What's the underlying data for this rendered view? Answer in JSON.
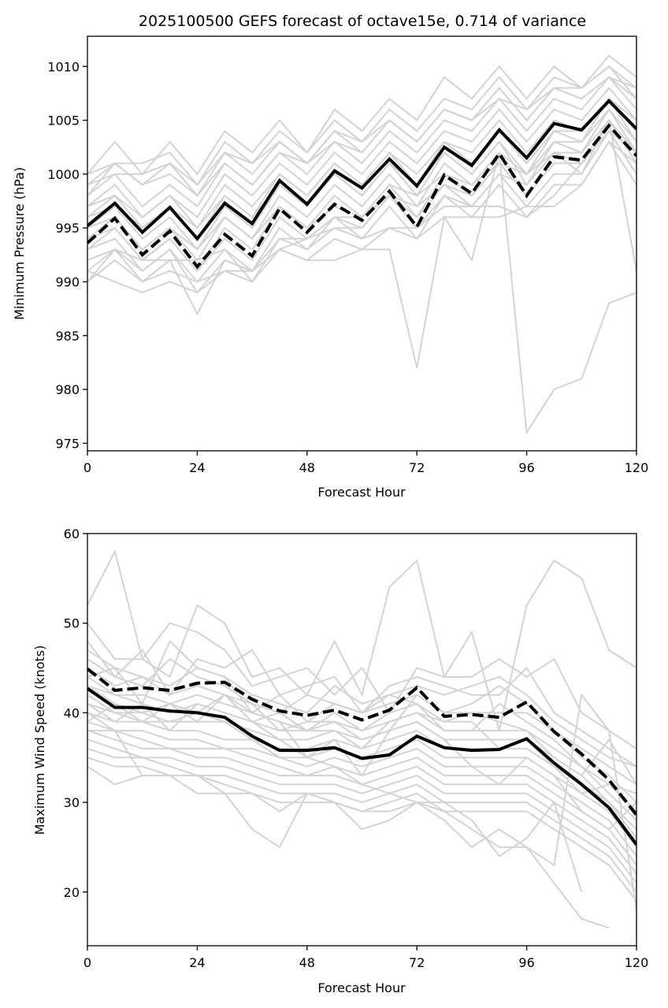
{
  "chart_data": [
    {
      "type": "line",
      "title": "2025100500 GEFS forecast of octave15e, 0.714 of variance",
      "xlabel": "Forecast Hour",
      "ylabel": "Minimum Pressure (hPa)",
      "xlim": [
        0,
        120
      ],
      "ylim": [
        974.3,
        1012.8
      ],
      "xticks": [
        0,
        24,
        48,
        72,
        96,
        120
      ],
      "yticks": [
        975,
        980,
        985,
        990,
        995,
        1000,
        1005,
        1010
      ],
      "grid": false,
      "x": [
        0,
        6,
        12,
        18,
        24,
        30,
        36,
        42,
        48,
        54,
        60,
        66,
        72,
        78,
        84,
        90,
        96,
        102,
        108,
        114,
        120
      ],
      "highlight_series": [
        {
          "name": "mean",
          "style": "solid",
          "color": "#000000",
          "values": [
            995.2,
            997.3,
            994.6,
            996.9,
            994.0,
            997.3,
            995.4,
            999.4,
            997.2,
            1000.3,
            998.7,
            1001.4,
            998.9,
            1002.5,
            1000.8,
            1004.1,
            1001.5,
            1004.7,
            1004.1,
            1006.8,
            1004.2
          ]
        },
        {
          "name": "reconstruction",
          "style": "dashed",
          "color": "#000000",
          "values": [
            993.6,
            995.9,
            992.5,
            994.7,
            991.4,
            994.4,
            992.4,
            996.8,
            994.6,
            997.2,
            995.7,
            998.4,
            995.1,
            999.9,
            998.2,
            1001.9,
            998.0,
            1001.6,
            1001.3,
            1004.5,
            1001.7
          ]
        }
      ],
      "ensemble_color": "#d3d3d3",
      "ensemble_series": [
        [
          1000,
          1003,
          1000,
          1003,
          1000,
          1004,
          1002,
          1005,
          1002,
          1006,
          1004,
          1007,
          1005,
          1009,
          1007,
          1010,
          1007,
          1010,
          1008,
          1011,
          1009
        ],
        [
          999,
          1001,
          1001,
          1002,
          999,
          1003,
          1001,
          1004,
          1002,
          1005,
          1003,
          1006,
          1004,
          1007,
          1006,
          1009,
          1006,
          1009,
          1008,
          1010,
          1008
        ],
        [
          998,
          1001,
          999,
          1001,
          998,
          1002,
          1000,
          1003,
          1001,
          1004,
          1002,
          1005,
          1003,
          1006,
          1005,
          1008,
          1005,
          1008,
          1007,
          1009,
          1007
        ],
        [
          998,
          1000,
          997,
          999,
          997,
          1001,
          999,
          1002,
          1000,
          1003,
          1001,
          1004,
          1002,
          1005,
          1004,
          1007,
          1004,
          1007,
          1006,
          1009,
          1006
        ],
        [
          997,
          999,
          996,
          998,
          996,
          1000,
          998,
          1001,
          999,
          1002,
          1000,
          1003,
          1001,
          1004,
          1003,
          1006,
          1003,
          1006,
          1005,
          1008,
          1005
        ],
        [
          997,
          998,
          996,
          998,
          995,
          999,
          997,
          1000,
          998,
          1001,
          999,
          1002,
          1000,
          1003,
          1002,
          1005,
          1002,
          1005,
          1004,
          1007,
          1004
        ],
        [
          996,
          998,
          995,
          997,
          995,
          998,
          996,
          1000,
          998,
          1001,
          999,
          1002,
          999,
          1003,
          1001,
          1004,
          1001,
          1004,
          1003,
          1007,
          1003
        ],
        [
          996,
          997,
          995,
          997,
          994,
          998,
          996,
          999,
          997,
          1000,
          998,
          1001,
          999,
          1002,
          1000,
          1003,
          1000,
          1003,
          1003,
          1006,
          1002
        ],
        [
          995,
          997,
          994,
          996,
          993,
          997,
          995,
          999,
          997,
          1000,
          998,
          1001,
          998,
          1002,
          1000,
          1003,
          999,
          1002,
          1002,
          1005,
          991
        ],
        [
          995,
          996,
          993,
          995,
          993,
          996,
          994,
          998,
          996,
          999,
          997,
          1000,
          997,
          1001,
          999,
          1002,
          1000,
          1002,
          1000,
          1005,
          1001
        ],
        [
          994,
          996,
          993,
          995,
          992,
          996,
          994,
          997,
          995,
          998,
          996,
          999,
          996,
          1000,
          998,
          1001,
          998,
          1001,
          1001,
          1004,
          1000
        ],
        [
          994,
          995,
          992,
          994,
          991,
          995,
          993,
          997,
          995,
          997,
          996,
          998,
          996,
          999,
          997,
          1000,
          997,
          1000,
          1000,
          1004,
          1000
        ],
        [
          993,
          995,
          992,
          994,
          991,
          994,
          992,
          996,
          994,
          996,
          995,
          998,
          995,
          998,
          996,
          999,
          996,
          999,
          999,
          1003,
          999
        ],
        [
          993,
          994,
          991,
          993,
          990,
          993,
          991,
          995,
          993,
          996,
          994,
          997,
          994,
          998,
          997,
          1000,
          999,
          1003,
          1002,
          1006,
          1003
        ],
        [
          992,
          993,
          991,
          993,
          989,
          992,
          991,
          994,
          993,
          995,
          994,
          995,
          995,
          997,
          997,
          997,
          996,
          998,
          1001,
          1004,
          1002
        ],
        [
          991,
          993,
          990,
          992,
          987,
          992,
          991,
          993,
          992,
          994,
          993,
          995,
          994,
          996,
          996,
          996,
          997,
          997,
          999,
          1003,
          1001
        ],
        [
          990,
          992,
          990,
          991,
          990,
          991,
          990,
          993,
          992,
          992,
          993,
          993,
          982,
          996,
          992,
          1002,
          976,
          980,
          981,
          988,
          989
        ],
        [
          991,
          990,
          989,
          990,
          989,
          991,
          991,
          993,
          994,
          995,
          995,
          998,
          997,
          999,
          998,
          1001,
          1000,
          1002,
          1001,
          1005,
          1002
        ],
        [
          990,
          993,
          992,
          992,
          992,
          993,
          990,
          994,
          994,
          996,
          996,
          999,
          998,
          1000,
          999,
          1001,
          1000,
          1004,
          1004,
          1007,
          1005
        ],
        [
          999,
          1000,
          1000,
          1001,
          999,
          1002,
          1001,
          1003,
          1001,
          1004,
          1003,
          1005,
          1003,
          1006,
          1005,
          1008,
          1005,
          1008,
          1007,
          1009,
          1008
        ],
        [
          1000,
          1001,
          999,
          1000,
          998,
          1001,
          999,
          1002,
          1001,
          1003,
          1002,
          1005,
          1003,
          1006,
          1005,
          1007,
          1006,
          1008,
          1008,
          1010,
          1007
        ]
      ]
    },
    {
      "type": "line",
      "title": "",
      "xlabel": "Forecast Hour",
      "ylabel": "Maximum Wind Speed (knots)",
      "xlim": [
        0,
        120
      ],
      "ylim": [
        14,
        60
      ],
      "xticks": [
        0,
        24,
        48,
        72,
        96,
        120
      ],
      "yticks": [
        20,
        30,
        40,
        50,
        60
      ],
      "grid": false,
      "x": [
        0,
        6,
        12,
        18,
        24,
        30,
        36,
        42,
        48,
        54,
        60,
        66,
        72,
        78,
        84,
        90,
        96,
        102,
        108,
        114,
        120
      ],
      "highlight_series": [
        {
          "name": "mean",
          "style": "solid",
          "color": "#000000",
          "values": [
            42.7,
            40.6,
            40.6,
            40.2,
            40.0,
            39.5,
            37.4,
            35.8,
            35.8,
            36.1,
            34.9,
            35.3,
            37.4,
            36.1,
            35.8,
            35.9,
            37.1,
            34.4,
            32.0,
            29.4,
            25.3
          ]
        },
        {
          "name": "reconstruction",
          "style": "dashed",
          "color": "#000000",
          "values": [
            44.9,
            42.5,
            42.8,
            42.5,
            43.3,
            43.4,
            41.5,
            40.2,
            39.7,
            40.3,
            39.2,
            40.3,
            42.8,
            39.6,
            39.8,
            39.5,
            41.2,
            37.9,
            35.4,
            32.5,
            28.6
          ]
        }
      ],
      "ensemble_color": "#d3d3d3",
      "ensemble_series": [
        [
          52,
          58,
          46,
          44,
          52,
          50,
          44,
          45,
          42,
          48,
          42,
          54,
          57,
          44,
          49,
          38,
          52,
          57,
          55,
          47,
          45
        ],
        [
          50,
          46,
          46,
          50,
          49,
          47,
          43,
          44,
          45,
          42,
          45,
          40,
          45,
          44,
          44,
          46,
          44,
          46,
          40,
          38,
          36
        ],
        [
          48,
          44,
          47,
          42,
          46,
          45,
          47,
          42,
          43,
          44,
          40,
          43,
          44,
          43,
          42,
          42,
          45,
          40,
          38,
          36,
          34
        ],
        [
          47,
          45,
          44,
          43,
          45,
          44,
          42,
          41,
          40,
          43,
          41,
          42,
          43,
          42,
          43,
          44,
          42,
          39,
          37,
          35,
          34
        ],
        [
          46,
          44,
          43,
          46,
          44,
          43,
          41,
          40,
          42,
          41,
          40,
          41,
          42,
          40,
          41,
          43,
          41,
          38,
          36,
          34,
          32
        ],
        [
          45,
          43,
          44,
          42,
          43,
          42,
          40,
          42,
          39,
          41,
          40,
          42,
          41,
          39,
          40,
          40,
          40,
          38,
          35,
          33,
          30
        ],
        [
          44,
          42,
          42,
          41,
          42,
          41,
          40,
          39,
          38,
          40,
          38,
          40,
          41,
          38,
          38,
          41,
          39,
          37,
          34,
          32,
          29
        ],
        [
          43,
          42,
          41,
          40,
          41,
          40,
          39,
          38,
          38,
          39,
          38,
          39,
          40,
          38,
          38,
          38,
          38,
          36,
          34,
          31,
          28
        ],
        [
          42,
          40,
          40,
          39,
          40,
          39,
          38,
          37,
          37,
          38,
          37,
          38,
          39,
          37,
          37,
          37,
          37,
          35,
          33,
          30,
          27
        ],
        [
          41,
          40,
          39,
          39,
          39,
          39,
          37,
          36,
          36,
          37,
          36,
          37,
          38,
          36,
          36,
          36,
          36,
          34,
          32,
          30,
          26
        ],
        [
          40,
          39,
          39,
          38,
          38,
          37,
          37,
          35,
          35,
          36,
          35,
          36,
          37,
          35,
          35,
          35,
          35,
          33,
          31,
          29,
          25
        ],
        [
          39,
          38,
          38,
          37,
          37,
          36,
          36,
          35,
          34,
          35,
          34,
          35,
          36,
          34,
          34,
          34,
          34,
          32,
          30,
          28,
          24
        ],
        [
          38,
          38,
          37,
          36,
          36,
          36,
          35,
          34,
          33,
          34,
          33,
          34,
          35,
          33,
          33,
          33,
          33,
          31,
          29,
          27,
          23
        ],
        [
          38,
          37,
          36,
          36,
          35,
          35,
          34,
          33,
          33,
          33,
          32,
          33,
          34,
          32,
          32,
          32,
          32,
          30,
          28,
          26,
          22
        ],
        [
          37,
          36,
          35,
          35,
          34,
          34,
          33,
          32,
          32,
          32,
          31,
          32,
          33,
          31,
          31,
          31,
          31,
          29,
          27,
          25,
          21
        ],
        [
          36,
          35,
          35,
          34,
          33,
          33,
          32,
          31,
          31,
          31,
          30,
          31,
          32,
          30,
          30,
          30,
          30,
          28,
          26,
          24,
          20
        ],
        [
          35,
          34,
          34,
          33,
          33,
          32,
          31,
          30,
          30,
          30,
          29,
          30,
          31,
          29,
          29,
          29,
          29,
          27,
          25,
          23,
          19
        ],
        [
          34,
          32,
          33,
          33,
          31,
          31,
          27,
          25,
          31,
          30,
          29,
          29,
          30,
          28,
          25,
          27,
          25,
          21,
          17,
          16,
          null
        ],
        [
          40,
          38,
          33,
          33,
          33,
          31,
          31,
          29,
          31,
          30,
          27,
          28,
          30,
          30,
          28,
          24,
          26,
          30,
          20,
          null,
          null
        ],
        [
          44,
          45,
          41,
          48,
          45,
          44,
          40,
          39,
          35,
          34,
          32,
          31,
          30,
          29,
          27,
          25,
          25,
          23,
          42,
          38,
          18
        ],
        [
          39,
          41,
          40,
          41,
          39,
          42,
          39,
          37,
          35,
          37,
          33,
          38,
          39,
          37,
          34,
          32,
          35,
          33,
          29,
          27,
          30
        ],
        [
          41,
          39,
          41,
          38,
          41,
          40,
          39,
          40,
          38,
          38,
          36,
          39,
          40,
          39,
          39,
          36,
          37,
          34,
          31,
          32,
          31
        ],
        [
          43,
          41,
          39,
          41,
          40,
          42,
          41,
          38,
          39,
          39,
          37,
          38,
          42,
          40,
          40,
          39,
          38,
          35,
          33,
          37,
          32
        ]
      ]
    }
  ]
}
